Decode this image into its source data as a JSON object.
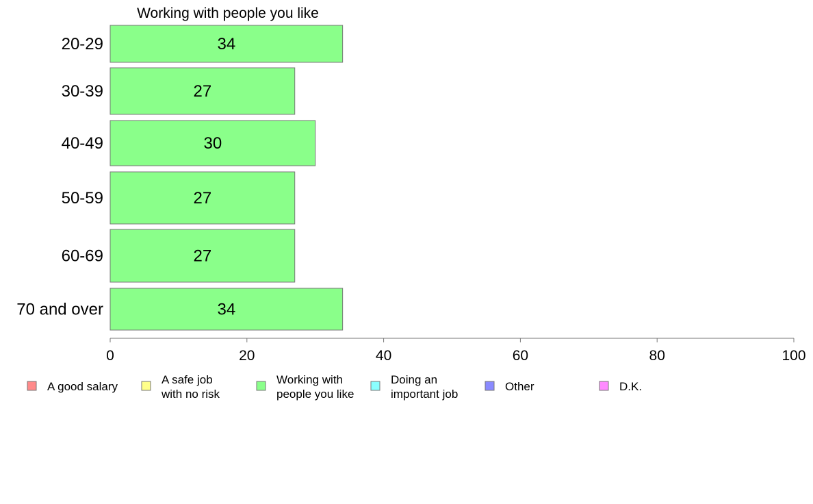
{
  "chart_data": {
    "type": "bar",
    "orientation": "horizontal",
    "title": "Working with people you like",
    "categories": [
      "20-29",
      "30-39",
      "40-49",
      "50-59",
      "60-69",
      "70 and over"
    ],
    "series": [
      {
        "name": "Working with people you like",
        "values": [
          34,
          27,
          30,
          27,
          27,
          34
        ],
        "color": "#8aff8a"
      }
    ],
    "data_labels": [
      "34",
      "27",
      "30",
      "27",
      "27",
      "34"
    ],
    "xlim": [
      0,
      100
    ],
    "x_ticks": [
      "0",
      "20",
      "40",
      "60",
      "80",
      "100"
    ],
    "grid": false,
    "legend_position": "bottom",
    "legend": [
      {
        "lines": [
          "A good salary"
        ],
        "color": "#ff8a8a"
      },
      {
        "lines": [
          "A safe job",
          "with no risk"
        ],
        "color": "#ffff8a"
      },
      {
        "lines": [
          "Working with",
          "people you like"
        ],
        "color": "#8aff8a"
      },
      {
        "lines": [
          "Doing an",
          "important job"
        ],
        "color": "#8affff"
      },
      {
        "lines": [
          "Other"
        ],
        "color": "#8a8aff"
      },
      {
        "lines": [
          "D.K."
        ],
        "color": "#ff8aff"
      }
    ]
  }
}
